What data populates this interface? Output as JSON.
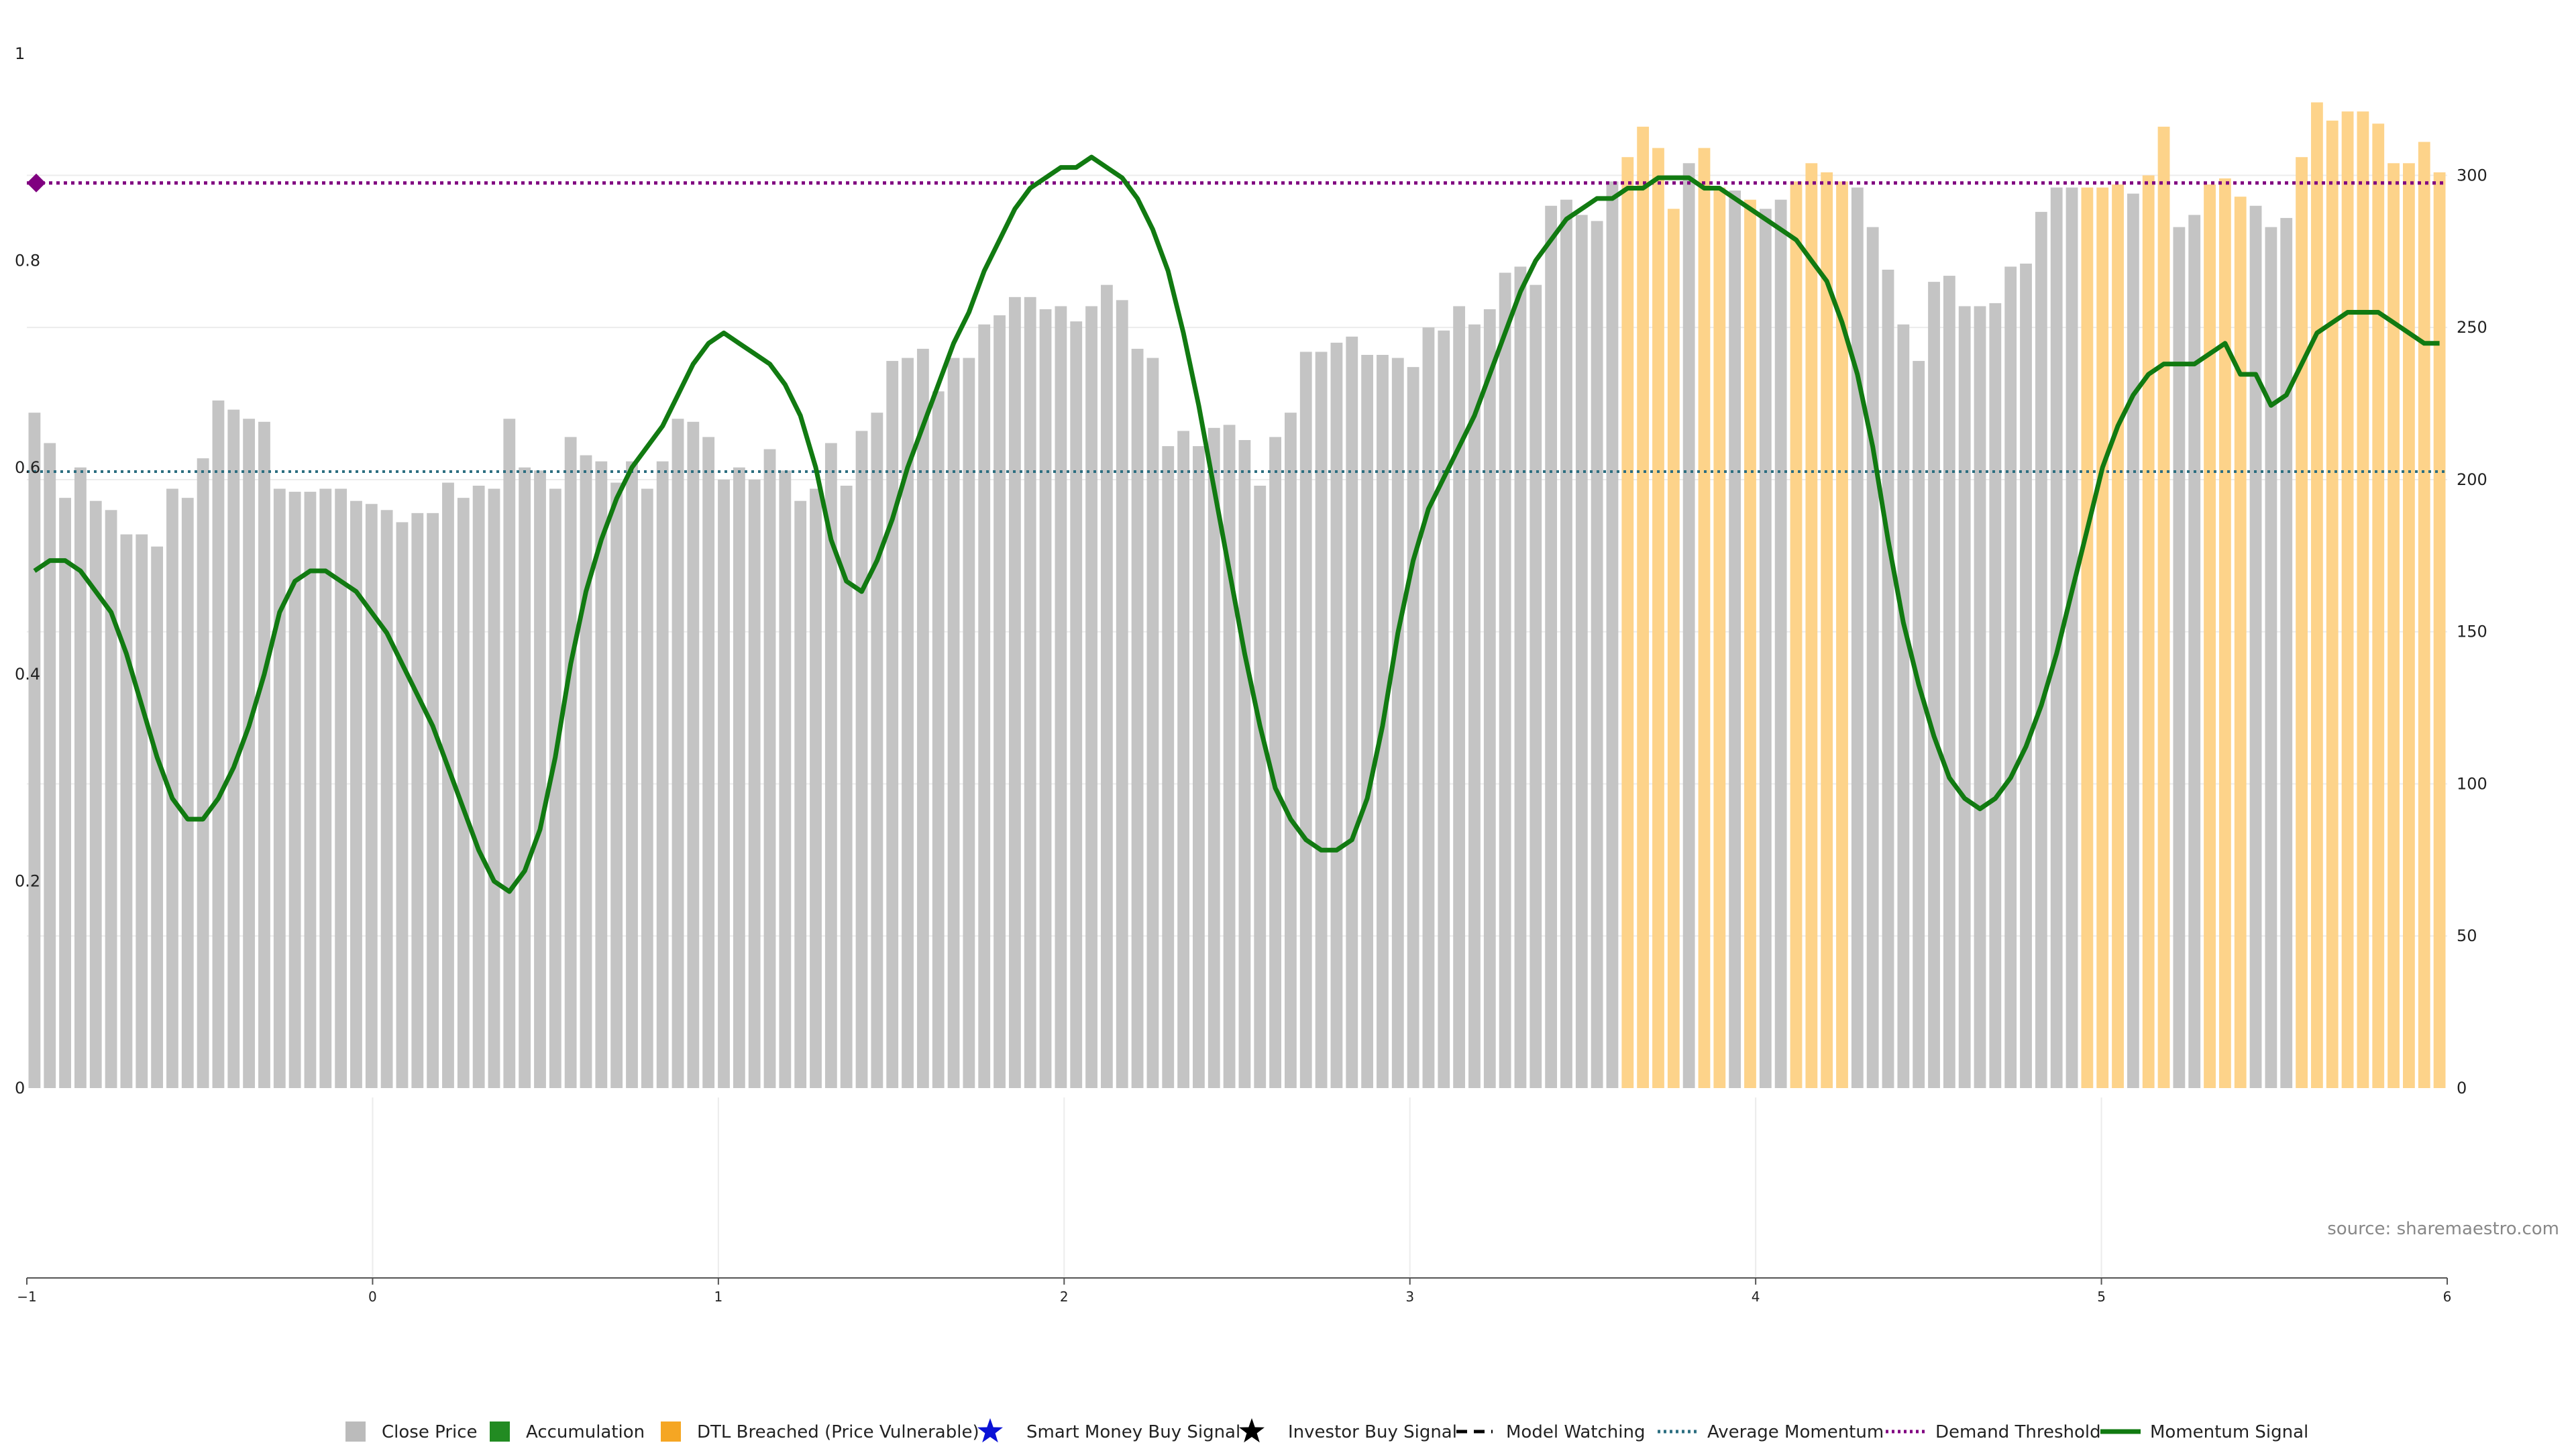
{
  "chart_data": {
    "type": "bar",
    "source_text": "source: sharemaestro.com",
    "left_axis": {
      "range": [
        0,
        1
      ],
      "ticks": [
        "0",
        "0.2",
        "0.4",
        "0.6",
        "0.8",
        "1"
      ]
    },
    "right_axis": {
      "range": [
        0,
        340
      ],
      "ticks": [
        "0",
        "50",
        "100",
        "150",
        "200",
        "250",
        "300"
      ]
    },
    "bottom_axis": {
      "range": [
        -1,
        6
      ],
      "ticks": [
        "−1",
        "0",
        "1",
        "2",
        "3",
        "4",
        "5",
        "6"
      ]
    },
    "grid": true,
    "legend_position": "bottom",
    "legend": [
      {
        "label": "Close Price",
        "symbol": "square",
        "color": "#bbbbbb"
      },
      {
        "label": "Accumulation",
        "symbol": "square",
        "color": "#228b22"
      },
      {
        "label": "DTL Breached (Price Vulnerable)",
        "symbol": "square",
        "color": "#f5a623"
      },
      {
        "label": "Smart Money Buy Signal",
        "symbol": "star",
        "color": "#0a12d6"
      },
      {
        "label": "Investor Buy Signal",
        "symbol": "star",
        "color": "#000000"
      },
      {
        "label": "Model Watching",
        "symbol": "dash",
        "color": "#000000"
      },
      {
        "label": "Average Momentum",
        "symbol": "dot-line",
        "color": "#2c6e80"
      },
      {
        "label": "Demand Threshold",
        "symbol": "dot-line",
        "color": "#800080"
      },
      {
        "label": "Momentum Signal",
        "symbol": "line",
        "color": "#117a11"
      }
    ],
    "colors": {
      "close": "#c4c4c4",
      "dtl": "#fdd38a",
      "momentum": "#117a11",
      "avg_momentum": "#2c6e80",
      "demand": "#800080"
    },
    "demand_threshold": 0.875,
    "average_momentum": 0.596,
    "close_price": [
      222,
      212,
      194,
      204,
      193,
      190,
      182,
      182,
      178,
      197,
      194,
      207,
      226,
      223,
      220,
      219,
      197,
      196,
      196,
      197,
      197,
      193,
      192,
      190,
      186,
      189,
      189,
      199,
      194,
      198,
      197,
      220,
      204,
      203,
      197,
      214,
      208,
      206,
      199,
      206,
      197,
      206,
      220,
      219,
      214,
      200,
      204,
      200,
      210,
      203,
      193,
      197,
      212,
      198,
      216,
      222,
      239,
      240,
      243,
      229,
      240,
      240,
      251,
      254,
      260,
      260,
      256,
      257,
      252,
      257,
      264,
      259,
      243,
      240,
      211,
      216,
      211,
      217,
      218,
      213,
      198,
      214,
      222,
      242,
      242,
      245,
      247,
      241,
      241,
      240,
      237,
      250,
      249,
      257,
      251,
      256,
      268,
      270,
      264,
      290,
      292,
      287,
      285,
      298,
      306,
      316,
      309,
      289,
      304,
      309,
      296,
      295,
      292,
      289,
      292,
      298,
      304,
      301,
      298,
      296,
      283,
      269,
      251,
      239,
      265,
      267,
      257,
      257,
      258,
      270,
      271,
      288,
      296,
      296,
      296,
      296,
      297,
      294,
      300,
      316,
      283,
      287,
      297,
      299,
      293,
      290,
      283,
      286,
      306,
      324,
      318,
      321,
      321,
      317,
      304,
      304,
      311,
      301
    ],
    "dtl_flags": [
      0,
      0,
      0,
      0,
      0,
      0,
      0,
      0,
      0,
      0,
      0,
      0,
      0,
      0,
      0,
      0,
      0,
      0,
      0,
      0,
      0,
      0,
      0,
      0,
      0,
      0,
      0,
      0,
      0,
      0,
      0,
      0,
      0,
      0,
      0,
      0,
      0,
      0,
      0,
      0,
      0,
      0,
      0,
      0,
      0,
      0,
      0,
      0,
      0,
      0,
      0,
      0,
      0,
      0,
      0,
      0,
      0,
      0,
      0,
      0,
      0,
      0,
      0,
      0,
      0,
      0,
      0,
      0,
      0,
      0,
      0,
      0,
      0,
      0,
      0,
      0,
      0,
      0,
      0,
      0,
      0,
      0,
      0,
      0,
      0,
      0,
      0,
      0,
      0,
      0,
      0,
      0,
      0,
      0,
      0,
      0,
      0,
      0,
      0,
      0,
      0,
      0,
      0,
      0,
      1,
      1,
      1,
      1,
      0,
      1,
      1,
      0,
      1,
      0,
      0,
      1,
      1,
      1,
      1,
      0,
      0,
      0,
      0,
      0,
      0,
      0,
      0,
      0,
      0,
      0,
      0,
      0,
      0,
      0,
      1,
      1,
      1,
      0,
      1,
      1,
      0,
      0,
      1,
      1,
      1,
      0,
      0,
      0,
      1,
      1,
      1,
      1,
      1,
      1,
      1,
      1,
      1,
      1
    ],
    "momentum_signal": [
      0.5,
      0.51,
      0.51,
      0.5,
      0.48,
      0.46,
      0.42,
      0.37,
      0.32,
      0.28,
      0.26,
      0.26,
      0.28,
      0.31,
      0.35,
      0.4,
      0.46,
      0.49,
      0.5,
      0.5,
      0.49,
      0.48,
      0.46,
      0.44,
      0.41,
      0.38,
      0.35,
      0.31,
      0.27,
      0.23,
      0.2,
      0.19,
      0.21,
      0.25,
      0.32,
      0.41,
      0.48,
      0.53,
      0.57,
      0.6,
      0.62,
      0.64,
      0.67,
      0.7,
      0.72,
      0.73,
      0.72,
      0.71,
      0.7,
      0.68,
      0.65,
      0.6,
      0.53,
      0.49,
      0.48,
      0.51,
      0.55,
      0.6,
      0.64,
      0.68,
      0.72,
      0.75,
      0.79,
      0.82,
      0.85,
      0.87,
      0.88,
      0.89,
      0.89,
      0.9,
      0.89,
      0.88,
      0.86,
      0.83,
      0.79,
      0.73,
      0.66,
      0.58,
      0.5,
      0.42,
      0.35,
      0.29,
      0.26,
      0.24,
      0.23,
      0.23,
      0.24,
      0.28,
      0.35,
      0.44,
      0.51,
      0.56,
      0.59,
      0.62,
      0.65,
      0.69,
      0.73,
      0.77,
      0.8,
      0.82,
      0.84,
      0.85,
      0.86,
      0.86,
      0.87,
      0.87,
      0.88,
      0.88,
      0.88,
      0.87,
      0.87,
      0.86,
      0.85,
      0.84,
      0.83,
      0.82,
      0.8,
      0.78,
      0.74,
      0.69,
      0.62,
      0.53,
      0.45,
      0.39,
      0.34,
      0.3,
      0.28,
      0.27,
      0.28,
      0.3,
      0.33,
      0.37,
      0.42,
      0.48,
      0.54,
      0.6,
      0.64,
      0.67,
      0.69,
      0.7,
      0.7,
      0.7,
      0.71,
      0.72,
      0.69,
      0.69,
      0.66,
      0.67,
      0.7,
      0.73,
      0.74,
      0.75,
      0.75,
      0.75,
      0.74,
      0.73,
      0.72,
      0.72
    ]
  }
}
